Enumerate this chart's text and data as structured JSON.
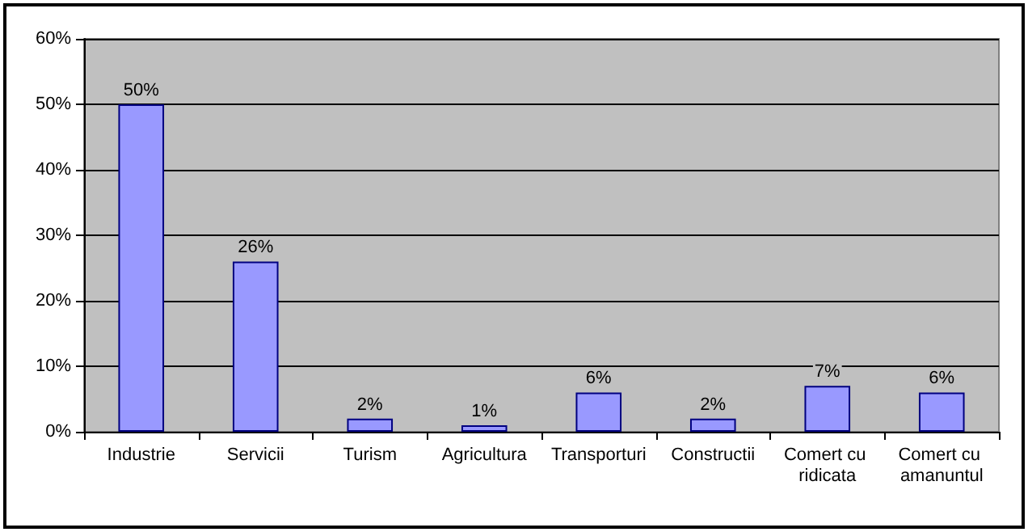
{
  "chart_data": {
    "type": "bar",
    "categories": [
      "Industrie",
      "Servicii",
      "Turism",
      "Agricultura",
      "Transporturi",
      "Constructii",
      "Comert cu ridicata",
      "Comert cu amanuntul"
    ],
    "values": [
      50,
      26,
      2,
      1,
      6,
      2,
      7,
      6
    ],
    "color": "#9999ff",
    "value_labels": [
      "50%",
      "26%",
      "2%",
      "1%",
      "6%",
      "2%",
      "7%",
      "6%"
    ],
    "ylim": [
      0,
      60
    ],
    "yticks": [
      {
        "value": 0,
        "label": "0%"
      },
      {
        "value": 10,
        "label": "10%"
      },
      {
        "value": 20,
        "label": "20%"
      },
      {
        "value": 30,
        "label": "30%"
      },
      {
        "value": 40,
        "label": "40%"
      },
      {
        "value": 50,
        "label": "50%"
      },
      {
        "value": 60,
        "label": "60%"
      }
    ],
    "grid": "y"
  }
}
